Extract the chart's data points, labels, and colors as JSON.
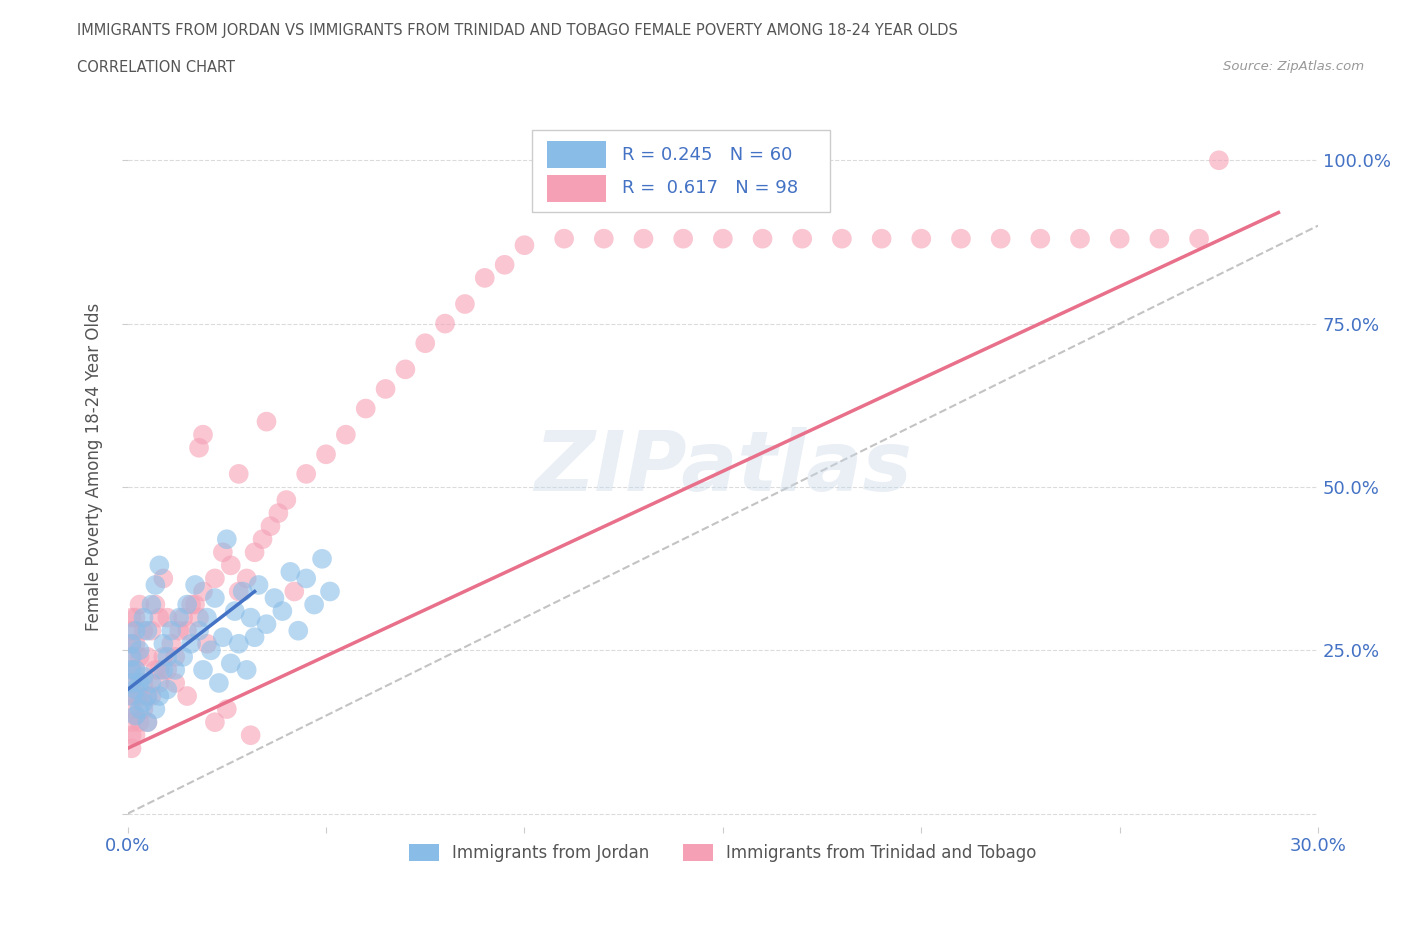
{
  "title_line1": "IMMIGRANTS FROM JORDAN VS IMMIGRANTS FROM TRINIDAD AND TOBAGO FEMALE POVERTY AMONG 18-24 YEAR OLDS",
  "title_line2": "CORRELATION CHART",
  "source": "Source: ZipAtlas.com",
  "ylabel": "Female Poverty Among 18-24 Year Olds",
  "xlim": [
    0.0,
    0.3
  ],
  "ylim": [
    -0.02,
    1.08
  ],
  "xtick_positions": [
    0.0,
    0.05,
    0.1,
    0.15,
    0.2,
    0.25,
    0.3
  ],
  "xticklabels": [
    "0.0%",
    "",
    "",
    "",
    "",
    "",
    "30.0%"
  ],
  "ytick_positions": [
    0.0,
    0.25,
    0.5,
    0.75,
    1.0
  ],
  "ytick_labels": [
    "",
    "25.0%",
    "50.0%",
    "75.0%",
    "100.0%"
  ],
  "jordan_color": "#89bde8",
  "trinidad_color": "#f5a0b5",
  "jordan_line_color": "#4472c4",
  "trinidad_line_color": "#e8708a",
  "R_jordan": 0.245,
  "N_jordan": 60,
  "R_trinidad": 0.617,
  "N_trinidad": 98,
  "legend_label_jordan": "Immigrants from Jordan",
  "legend_label_trinidad": "Immigrants from Trinidad and Tobago",
  "watermark_text": "ZIPatlas",
  "title_color": "#555555",
  "tick_label_color": "#4472c4",
  "background_color": "#ffffff",
  "grid_color": "#cccccc",
  "jordan_x": [
    0.001,
    0.001,
    0.001,
    0.001,
    0.001,
    0.002,
    0.002,
    0.002,
    0.002,
    0.003,
    0.003,
    0.003,
    0.004,
    0.004,
    0.004,
    0.005,
    0.005,
    0.005,
    0.006,
    0.006,
    0.007,
    0.007,
    0.008,
    0.008,
    0.009,
    0.009,
    0.01,
    0.01,
    0.011,
    0.012,
    0.013,
    0.014,
    0.015,
    0.016,
    0.017,
    0.018,
    0.019,
    0.02,
    0.021,
    0.022,
    0.023,
    0.024,
    0.025,
    0.026,
    0.027,
    0.028,
    0.029,
    0.03,
    0.031,
    0.032,
    0.033,
    0.035,
    0.037,
    0.039,
    0.041,
    0.043,
    0.045,
    0.047,
    0.049,
    0.051
  ],
  "jordan_y": [
    0.18,
    0.2,
    0.22,
    0.24,
    0.26,
    0.15,
    0.19,
    0.22,
    0.28,
    0.16,
    0.2,
    0.25,
    0.17,
    0.21,
    0.3,
    0.14,
    0.18,
    0.28,
    0.2,
    0.32,
    0.16,
    0.35,
    0.18,
    0.38,
    0.22,
    0.26,
    0.19,
    0.24,
    0.28,
    0.22,
    0.3,
    0.24,
    0.32,
    0.26,
    0.35,
    0.28,
    0.22,
    0.3,
    0.25,
    0.33,
    0.2,
    0.27,
    0.42,
    0.23,
    0.31,
    0.26,
    0.34,
    0.22,
    0.3,
    0.27,
    0.35,
    0.29,
    0.33,
    0.31,
    0.37,
    0.28,
    0.36,
    0.32,
    0.39,
    0.34
  ],
  "trinidad_x": [
    0.001,
    0.001,
    0.001,
    0.001,
    0.001,
    0.001,
    0.001,
    0.001,
    0.001,
    0.001,
    0.001,
    0.002,
    0.002,
    0.002,
    0.002,
    0.002,
    0.002,
    0.003,
    0.003,
    0.003,
    0.003,
    0.004,
    0.004,
    0.004,
    0.005,
    0.005,
    0.005,
    0.006,
    0.006,
    0.007,
    0.007,
    0.008,
    0.008,
    0.009,
    0.009,
    0.01,
    0.01,
    0.011,
    0.012,
    0.013,
    0.014,
    0.015,
    0.016,
    0.017,
    0.018,
    0.019,
    0.02,
    0.022,
    0.024,
    0.026,
    0.028,
    0.03,
    0.032,
    0.034,
    0.036,
    0.038,
    0.04,
    0.045,
    0.05,
    0.055,
    0.06,
    0.065,
    0.07,
    0.075,
    0.08,
    0.085,
    0.09,
    0.095,
    0.1,
    0.11,
    0.12,
    0.13,
    0.14,
    0.15,
    0.16,
    0.17,
    0.18,
    0.19,
    0.2,
    0.21,
    0.22,
    0.23,
    0.24,
    0.25,
    0.26,
    0.27,
    0.019,
    0.028,
    0.022,
    0.015,
    0.012,
    0.008,
    0.035,
    0.042,
    0.018,
    0.025,
    0.031,
    0.275
  ],
  "trinidad_y": [
    0.1,
    0.12,
    0.14,
    0.16,
    0.18,
    0.2,
    0.22,
    0.24,
    0.26,
    0.28,
    0.3,
    0.12,
    0.15,
    0.18,
    0.22,
    0.26,
    0.3,
    0.14,
    0.18,
    0.24,
    0.32,
    0.16,
    0.2,
    0.28,
    0.14,
    0.18,
    0.24,
    0.18,
    0.28,
    0.22,
    0.32,
    0.2,
    0.3,
    0.24,
    0.36,
    0.22,
    0.3,
    0.26,
    0.24,
    0.28,
    0.3,
    0.28,
    0.32,
    0.32,
    0.3,
    0.34,
    0.26,
    0.36,
    0.4,
    0.38,
    0.34,
    0.36,
    0.4,
    0.42,
    0.44,
    0.46,
    0.48,
    0.52,
    0.55,
    0.58,
    0.62,
    0.65,
    0.68,
    0.72,
    0.75,
    0.78,
    0.82,
    0.84,
    0.87,
    0.88,
    0.88,
    0.88,
    0.88,
    0.88,
    0.88,
    0.88,
    0.88,
    0.88,
    0.88,
    0.88,
    0.88,
    0.88,
    0.88,
    0.88,
    0.88,
    0.88,
    0.58,
    0.52,
    0.14,
    0.18,
    0.2,
    0.22,
    0.6,
    0.34,
    0.56,
    0.16,
    0.12,
    1.0
  ],
  "jordan_line_x": [
    0.0,
    0.032
  ],
  "jordan_line_y": [
    0.19,
    0.34
  ],
  "trinidad_line_x": [
    0.0,
    0.29
  ],
  "trinidad_line_y": [
    0.1,
    0.92
  ],
  "ref_line_x": [
    0.0,
    0.3
  ],
  "ref_line_y": [
    0.0,
    0.9
  ]
}
